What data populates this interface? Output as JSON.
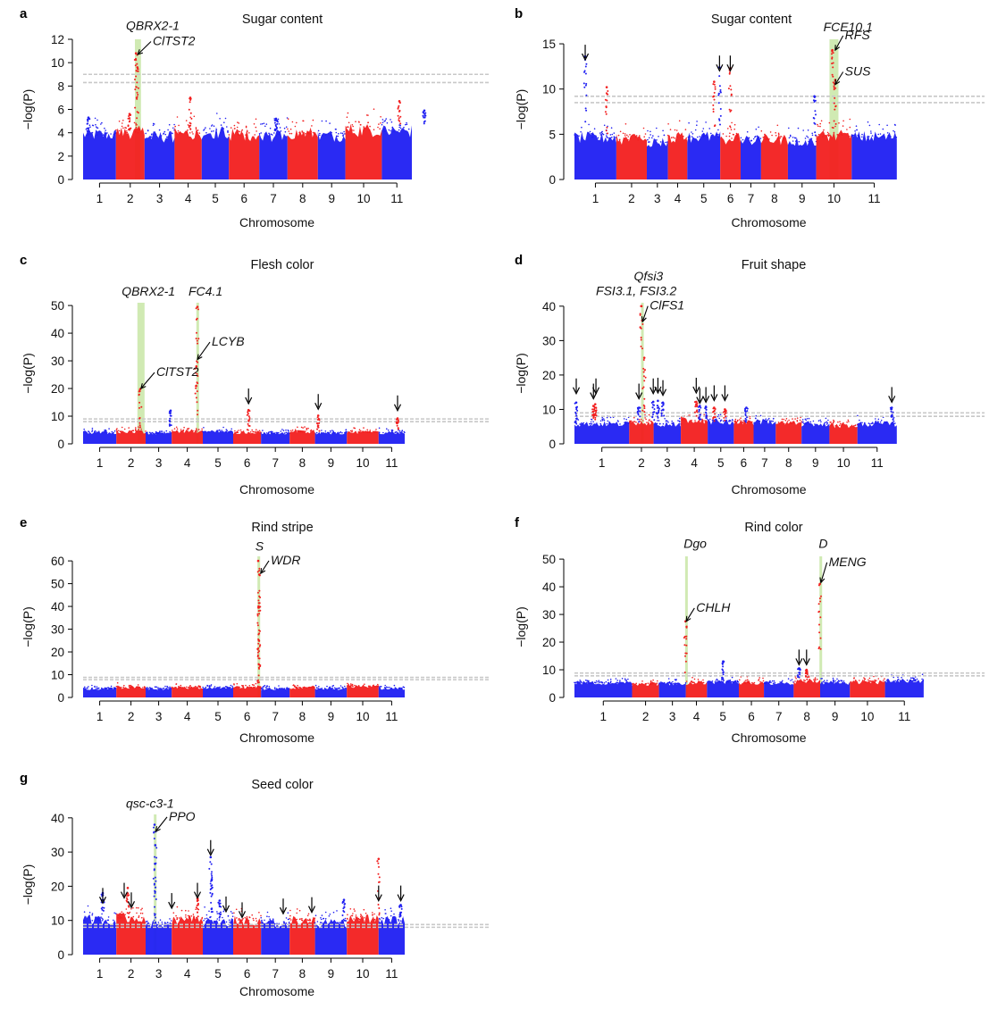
{
  "figure_meta": {
    "colors": {
      "odd_chrom": "#1f1ff2",
      "even_chrom": "#f21f1f",
      "highlight": "#c8e6a6",
      "threshold": "#c8c8c8"
    },
    "chromosomes": [
      "1",
      "2",
      "3",
      "4",
      "5",
      "6",
      "7",
      "8",
      "9",
      "10",
      "11"
    ]
  },
  "chart_data": [
    {
      "id": "a",
      "type": "scatter",
      "letter": "a",
      "title": "Sugar content",
      "xlabel": "Chromosome",
      "ylabel": "−log(P)",
      "ylim": [
        0,
        12
      ],
      "yticks": [
        0,
        2,
        4,
        6,
        8,
        10,
        12
      ],
      "xlim": [
        0,
        11
      ],
      "chrom_bounds": [
        0,
        0.92,
        1.72,
        2.56,
        3.32,
        4.08,
        4.93,
        5.72,
        6.57,
        7.34,
        8.36,
        9.2
      ],
      "baseline_top": [
        4.0,
        4.2,
        3.8,
        4.1,
        4.2,
        4.0,
        3.9,
        4.1,
        3.9,
        4.4,
        4.3
      ],
      "thresholds": [
        8.3,
        9.0
      ],
      "highlights": [
        {
          "x": 1.45,
          "width": 0.17
        }
      ],
      "peaks": [
        {
          "x": 1.48,
          "y": 10.8,
          "chrom": 2
        },
        {
          "x": 1.52,
          "y": 9.6,
          "chrom": 2
        },
        {
          "x": 3.0,
          "y": 7.0,
          "chrom": 4
        },
        {
          "x": 8.85,
          "y": 6.7,
          "chrom": 10
        },
        {
          "x": 9.55,
          "y": 5.9,
          "chrom": 11
        },
        {
          "x": 0.15,
          "y": 5.3,
          "chrom": 1
        },
        {
          "x": 1.3,
          "y": 5.6,
          "chrom": 2
        },
        {
          "x": 5.4,
          "y": 5.2,
          "chrom": 7
        }
      ],
      "arrows": [],
      "annotations": [
        {
          "label": "QBRX2-1",
          "x": 1.2,
          "y": 12.8
        },
        {
          "label": "ClTST2",
          "x": 1.95,
          "y": 11.5,
          "arrow_to": [
            1.53,
            10.7
          ]
        }
      ]
    },
    {
      "id": "b",
      "type": "scatter",
      "letter": "b",
      "title": "Sugar content",
      "xlabel": "Chromosome",
      "ylabel": "−log(P)",
      "ylim": [
        0,
        15.5
      ],
      "yticks": [
        0,
        5,
        10,
        15
      ],
      "xlim": [
        0,
        11
      ],
      "chrom_bounds": [
        0,
        1.17,
        2.02,
        2.61,
        3.15,
        4.07,
        4.64,
        5.21,
        5.96,
        6.75,
        7.74,
        9.0
      ],
      "baseline_top": [
        4.8,
        4.6,
        4.3,
        4.8,
        4.9,
        4.7,
        4.5,
        4.6,
        4.4,
        5.0,
        4.9
      ],
      "thresholds": [
        8.5,
        9.2
      ],
      "highlights": [
        {
          "x": 7.12,
          "width": 0.25
        }
      ],
      "peaks": [
        {
          "x": 0.3,
          "y": 13.6,
          "chrom": 1
        },
        {
          "x": 4.05,
          "y": 12.4,
          "chrom": 5
        },
        {
          "x": 4.35,
          "y": 12.3,
          "chrom": 6
        },
        {
          "x": 7.2,
          "y": 14.3,
          "chrom": 10
        },
        {
          "x": 7.28,
          "y": 11.0,
          "chrom": 10
        },
        {
          "x": 3.9,
          "y": 10.8,
          "chrom": 4
        },
        {
          "x": 0.9,
          "y": 10.2,
          "chrom": 2
        },
        {
          "x": 6.7,
          "y": 9.2,
          "chrom": 9
        }
      ],
      "arrows": [
        {
          "x": 0.3,
          "y": 14.9
        },
        {
          "x": 4.05,
          "y": 13.7
        },
        {
          "x": 4.35,
          "y": 13.7
        }
      ],
      "annotations": [
        {
          "label": "FCE10.1",
          "x": 6.95,
          "y": 16.4
        },
        {
          "label": "RFS",
          "x": 7.55,
          "y": 15.5,
          "arrow_to": [
            7.28,
            14.3
          ]
        },
        {
          "label": "SUS",
          "x": 7.55,
          "y": 11.5,
          "arrow_to": [
            7.28,
            10.5
          ]
        }
      ]
    },
    {
      "id": "c",
      "type": "scatter",
      "letter": "c",
      "title": "Flesh color",
      "xlabel": "Chromosome",
      "ylabel": "−log(P)",
      "ylim": [
        0,
        51
      ],
      "yticks": [
        0,
        10,
        20,
        30,
        40,
        50
      ],
      "xlim": [
        0,
        11
      ],
      "chrom_bounds": [
        0,
        0.93,
        1.75,
        2.48,
        3.35,
        4.2,
        4.98,
        5.78,
        6.49,
        7.38,
        8.27,
        9.0
      ],
      "baseline_top": [
        4.2,
        4.5,
        4.0,
        4.7,
        4.5,
        4.2,
        4.0,
        4.6,
        4.1,
        4.3,
        4.2
      ],
      "thresholds": [
        8.0,
        9.0
      ],
      "highlights": [
        {
          "x": 1.52,
          "width": 0.2
        },
        {
          "x": 3.17,
          "width": 0.06
        }
      ],
      "peaks": [
        {
          "x": 3.2,
          "y": 49.5,
          "chrom": 4
        },
        {
          "x": 3.17,
          "y": 28.0,
          "chrom": 4
        },
        {
          "x": 1.6,
          "y": 19.8,
          "chrom": 2
        },
        {
          "x": 4.63,
          "y": 12.2,
          "chrom": 6
        },
        {
          "x": 6.58,
          "y": 10.2,
          "chrom": 8
        },
        {
          "x": 8.8,
          "y": 9.2,
          "chrom": 10
        },
        {
          "x": 2.45,
          "y": 12.0,
          "chrom": 3
        }
      ],
      "arrows": [
        {
          "x": 4.63,
          "y": 20.0
        },
        {
          "x": 6.58,
          "y": 18.0
        },
        {
          "x": 8.8,
          "y": 17.5
        }
      ],
      "annotations": [
        {
          "label": "QBRX2-1",
          "x": 1.08,
          "y": 53.6
        },
        {
          "label": "FC4.1",
          "x": 2.95,
          "y": 53.6
        },
        {
          "label": "LCYB",
          "x": 3.6,
          "y": 35.5,
          "arrow_to": [
            3.2,
            30.5
          ]
        },
        {
          "label": "ClTST2",
          "x": 2.05,
          "y": 24.5,
          "arrow_to": [
            1.62,
            20.0
          ]
        }
      ]
    },
    {
      "id": "d",
      "type": "scatter",
      "letter": "d",
      "title": "Fruit shape",
      "xlabel": "Chromosome",
      "ylabel": "−log(P)",
      "ylim": [
        0,
        41
      ],
      "yticks": [
        0,
        10,
        20,
        30,
        40
      ],
      "xlim": [
        0,
        11
      ],
      "chrom_bounds": [
        0,
        1.53,
        2.21,
        2.97,
        3.72,
        4.45,
        5.0,
        5.62,
        6.34,
        7.12,
        7.9,
        9.0
      ],
      "baseline_top": [
        6.0,
        6.5,
        6.0,
        7.0,
        6.8,
        6.5,
        6.8,
        6.2,
        6.0,
        5.5,
        6.0
      ],
      "thresholds": [
        8.0,
        9.0
      ],
      "highlights": [
        {
          "x": 1.86,
          "width": 0.05
        }
      ],
      "peaks": [
        {
          "x": 1.87,
          "y": 40.0,
          "chrom": 4
        },
        {
          "x": 1.95,
          "y": 25.0,
          "chrom": 4
        },
        {
          "x": 0.05,
          "y": 12.0,
          "chrom": 1
        },
        {
          "x": 0.53,
          "y": 11.0,
          "chrom": 2
        },
        {
          "x": 0.58,
          "y": 11.5,
          "chrom": 2
        },
        {
          "x": 1.8,
          "y": 10.5,
          "chrom": 3
        },
        {
          "x": 2.2,
          "y": 12.2,
          "chrom": 5
        },
        {
          "x": 2.33,
          "y": 12.5,
          "chrom": 5
        },
        {
          "x": 2.47,
          "y": 12.0,
          "chrom": 5
        },
        {
          "x": 3.4,
          "y": 12.2,
          "chrom": 6
        },
        {
          "x": 3.5,
          "y": 11.0,
          "chrom": 7
        },
        {
          "x": 3.67,
          "y": 10.8,
          "chrom": 7
        },
        {
          "x": 3.9,
          "y": 10.5,
          "chrom": 8
        },
        {
          "x": 4.2,
          "y": 10.0,
          "chrom": 8
        },
        {
          "x": 4.8,
          "y": 10.5,
          "chrom": 9
        },
        {
          "x": 8.86,
          "y": 10.5,
          "chrom": 11
        }
      ],
      "arrows": [
        {
          "x": 0.05,
          "y": 19.0
        },
        {
          "x": 0.53,
          "y": 17.5
        },
        {
          "x": 0.6,
          "y": 19.0
        },
        {
          "x": 1.8,
          "y": 17.5
        },
        {
          "x": 2.2,
          "y": 19.0
        },
        {
          "x": 2.33,
          "y": 19.2
        },
        {
          "x": 2.47,
          "y": 18.5
        },
        {
          "x": 3.4,
          "y": 19.2
        },
        {
          "x": 3.5,
          "y": 16.2
        },
        {
          "x": 3.67,
          "y": 16.5
        },
        {
          "x": 3.9,
          "y": 17.0
        },
        {
          "x": 4.2,
          "y": 17.0
        },
        {
          "x": 8.86,
          "y": 16.5
        }
      ],
      "annotations": [
        {
          "label": "Qfsi3",
          "x": 1.66,
          "y": 47.5
        },
        {
          "label": "FSI3.1, FSI3.2",
          "x": 0.6,
          "y": 43.2
        },
        {
          "label": "ClFS1",
          "x": 2.1,
          "y": 39.0,
          "arrow_to": [
            1.9,
            35.5
          ]
        }
      ]
    },
    {
      "id": "e",
      "type": "scatter",
      "letter": "e",
      "title": "Rind stripe",
      "xlabel": "Chromosome",
      "ylabel": "−log(P)",
      "ylim": [
        0,
        62
      ],
      "yticks": [
        0,
        10,
        20,
        30,
        40,
        50,
        60
      ],
      "xlim": [
        0,
        11
      ],
      "chrom_bounds": [
        0,
        0.93,
        1.75,
        2.48,
        3.35,
        4.2,
        4.98,
        5.78,
        6.49,
        7.38,
        8.27,
        9.0
      ],
      "baseline_top": [
        4.0,
        4.6,
        4.0,
        4.5,
        4.3,
        4.6,
        4.0,
        4.5,
        4.0,
        5.0,
        4.0
      ],
      "thresholds": [
        7.8,
        8.8
      ],
      "highlights": [
        {
          "x": 4.88,
          "width": 0.05
        }
      ],
      "peaks": [
        {
          "x": 4.9,
          "y": 60.0,
          "chrom": 6
        },
        {
          "x": 4.93,
          "y": 54.0,
          "chrom": 6
        },
        {
          "x": 4.91,
          "y": 40.0,
          "chrom": 6
        },
        {
          "x": 4.92,
          "y": 25.0,
          "chrom": 6
        }
      ],
      "arrows": [],
      "annotations": [
        {
          "label": "S",
          "x": 4.82,
          "y": 64.5
        },
        {
          "label": "WDR",
          "x": 5.25,
          "y": 58.5,
          "arrow_to": [
            4.97,
            54.5
          ]
        }
      ]
    },
    {
      "id": "f",
      "type": "scatter",
      "letter": "f",
      "title": "Rind color",
      "xlabel": "Chromosome",
      "ylabel": "−log(P)",
      "ylim": [
        0,
        51
      ],
      "yticks": [
        0,
        10,
        20,
        30,
        40,
        50
      ],
      "xlim": [
        0,
        11
      ],
      "chrom_bounds": [
        0,
        1.61,
        2.36,
        3.11,
        3.7,
        4.59,
        5.29,
        6.12,
        6.86,
        7.69,
        8.67,
        9.75
      ],
      "baseline_top": [
        5.5,
        5.0,
        5.2,
        5.5,
        5.8,
        5.5,
        5.3,
        6.0,
        5.5,
        5.8,
        6.3
      ],
      "thresholds": [
        7.8,
        8.8
      ],
      "highlights": [
        {
          "x": 3.09,
          "width": 0.05
        },
        {
          "x": 6.84,
          "width": 0.05
        }
      ],
      "peaks": [
        {
          "x": 3.1,
          "y": 27.5,
          "chrom": 4
        },
        {
          "x": 6.85,
          "y": 41.0,
          "chrom": 8
        },
        {
          "x": 6.27,
          "y": 10.5,
          "chrom": 7
        },
        {
          "x": 6.48,
          "y": 10.0,
          "chrom": 8
        },
        {
          "x": 4.15,
          "y": 13.0,
          "chrom": 5
        }
      ],
      "arrows": [
        {
          "x": 6.27,
          "y": 17.3
        },
        {
          "x": 6.48,
          "y": 17.3
        }
      ],
      "annotations": [
        {
          "label": "Dgo",
          "x": 3.05,
          "y": 54.0
        },
        {
          "label": "D",
          "x": 6.82,
          "y": 54.0
        },
        {
          "label": "MENG",
          "x": 7.1,
          "y": 47.5,
          "arrow_to": [
            6.88,
            41.5
          ]
        },
        {
          "label": "CHLH",
          "x": 3.4,
          "y": 31.0,
          "arrow_to": [
            3.12,
            27.5
          ]
        }
      ]
    },
    {
      "id": "g",
      "type": "scatter",
      "letter": "g",
      "title": "Seed color",
      "xlabel": "Chromosome",
      "ylabel": "−log(P)",
      "ylim": [
        0,
        41
      ],
      "yticks": [
        0,
        10,
        20,
        30,
        40
      ],
      "xlim": [
        0,
        11
      ],
      "chrom_bounds": [
        0,
        0.93,
        1.75,
        2.48,
        3.35,
        4.2,
        4.98,
        5.78,
        6.49,
        7.38,
        8.27,
        9.0
      ],
      "baseline_top": [
        10.5,
        11.2,
        9.0,
        10.8,
        10.0,
        10.4,
        9.5,
        10.5,
        9.5,
        10.8,
        10.3
      ],
      "thresholds": [
        8.0,
        8.8
      ],
      "highlights": [
        {
          "x": 1.98,
          "width": 0.05
        }
      ],
      "peaks": [
        {
          "x": 2.0,
          "y": 38.0,
          "chrom": 3
        },
        {
          "x": 2.02,
          "y": 32.0,
          "chrom": 3
        },
        {
          "x": 3.57,
          "y": 28.5,
          "chrom": 5
        },
        {
          "x": 3.6,
          "y": 22.0,
          "chrom": 5
        },
        {
          "x": 8.27,
          "y": 28.0,
          "chrom": 10
        },
        {
          "x": 0.55,
          "y": 18.0,
          "chrom": 1
        },
        {
          "x": 1.25,
          "y": 19.5,
          "chrom": 2
        },
        {
          "x": 3.2,
          "y": 16.5,
          "chrom": 4
        },
        {
          "x": 3.82,
          "y": 15.8,
          "chrom": 5
        },
        {
          "x": 8.89,
          "y": 14.5,
          "chrom": 11
        },
        {
          "x": 7.3,
          "y": 16.0,
          "chrom": 9
        }
      ],
      "arrows": [
        {
          "x": 0.55,
          "y": 19.5
        },
        {
          "x": 1.15,
          "y": 21.0
        },
        {
          "x": 1.35,
          "y": 18.2
        },
        {
          "x": 2.48,
          "y": 18.0
        },
        {
          "x": 3.2,
          "y": 21.0
        },
        {
          "x": 3.57,
          "y": 33.5
        },
        {
          "x": 4.0,
          "y": 17.0
        },
        {
          "x": 4.45,
          "y": 15.3
        },
        {
          "x": 5.6,
          "y": 16.4
        },
        {
          "x": 6.4,
          "y": 16.8
        },
        {
          "x": 8.27,
          "y": 20.2
        },
        {
          "x": 8.89,
          "y": 20.2
        }
      ],
      "annotations": [
        {
          "label": "qsc-c3-1",
          "x": 1.2,
          "y": 43.0
        },
        {
          "label": "PPO",
          "x": 2.4,
          "y": 39.2,
          "arrow_to": [
            2.03,
            36.0
          ]
        }
      ]
    }
  ]
}
